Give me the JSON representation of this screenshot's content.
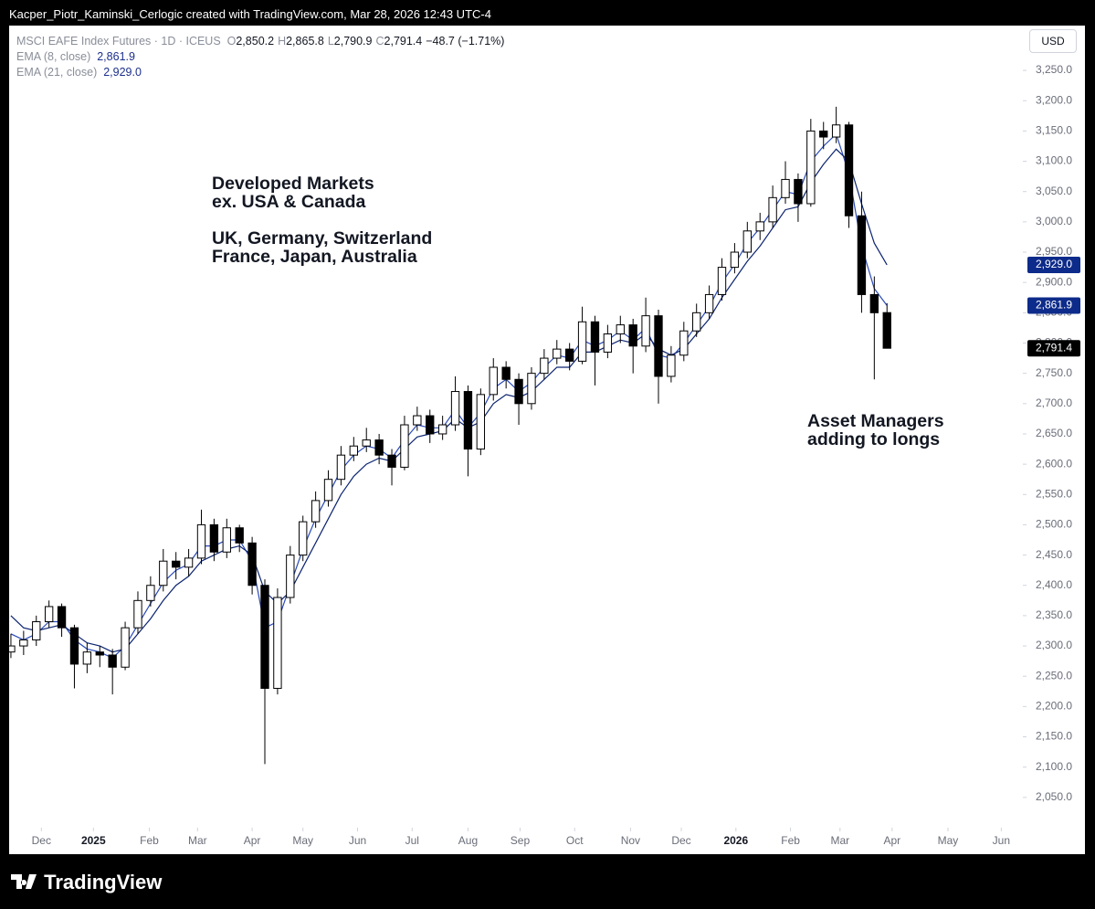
{
  "chart_data": {
    "type": "candlestick",
    "attribution": "Kacper_Piotr_Kaminski_Cerlogic created with TradingView.com, Mar 28, 2026 12:43 UTC-4",
    "symbol": "MSCI EAFE Index Futures · 1D · ICEUS",
    "legend_ohlc": [
      {
        "key": "O",
        "value": "2,850.2"
      },
      {
        "key": "H",
        "value": "2,865.8"
      },
      {
        "key": "L",
        "value": "2,790.9"
      },
      {
        "key": "C",
        "value": "2,791.4"
      }
    ],
    "change": "−48.7 (−1.71%)",
    "currency": "USD",
    "brand": "TradingView",
    "annotations": [
      "Developed Markets",
      "ex. USA & Canada",
      "UK, Germany, Switzerland",
      "France, Japan, Australia",
      "Asset Managers",
      "adding to longs"
    ],
    "up_color": "#ffffff",
    "down_color": "#000000",
    "open": [
      2290,
      2300,
      2310,
      2340,
      2365,
      2330,
      2270,
      2290,
      2285,
      2265,
      2330,
      2375,
      2400,
      2440,
      2430,
      2445,
      2500,
      2455,
      2495,
      2470,
      2400,
      2230,
      2380,
      2450,
      2505,
      2540,
      2575,
      2615,
      2630,
      2640,
      2615,
      2595,
      2665,
      2680,
      2650,
      2665,
      2720,
      2625,
      2715,
      2760,
      2740,
      2700,
      2750,
      2775,
      2790,
      2770,
      2835,
      2785,
      2815,
      2830,
      2795,
      2845,
      2745,
      2780,
      2820,
      2850,
      2880,
      2925,
      2950,
      2985,
      3000,
      3040,
      3070,
      3030,
      3150,
      3140,
      3160,
      3010,
      2880,
      2850.2
    ],
    "high": [
      2320,
      2325,
      2350,
      2375,
      2370,
      2335,
      2305,
      2300,
      2295,
      2340,
      2390,
      2415,
      2460,
      2455,
      2460,
      2525,
      2510,
      2510,
      2500,
      2480,
      2410,
      2395,
      2465,
      2515,
      2555,
      2590,
      2630,
      2645,
      2660,
      2650,
      2625,
      2680,
      2695,
      2690,
      2680,
      2745,
      2730,
      2725,
      2775,
      2770,
      2750,
      2760,
      2790,
      2805,
      2800,
      2860,
      2845,
      2830,
      2845,
      2840,
      2875,
      2855,
      2795,
      2835,
      2865,
      2895,
      2940,
      2965,
      3000,
      3015,
      3060,
      3100,
      3080,
      3170,
      3165,
      3190,
      3165,
      3050,
      2910,
      2865.8
    ],
    "low": [
      2280,
      2285,
      2300,
      2330,
      2315,
      2230,
      2255,
      2265,
      2220,
      2260,
      2320,
      2365,
      2390,
      2410,
      2415,
      2435,
      2440,
      2445,
      2455,
      2385,
      2105,
      2220,
      2370,
      2440,
      2495,
      2530,
      2565,
      2605,
      2620,
      2600,
      2565,
      2590,
      2655,
      2635,
      2640,
      2655,
      2580,
      2615,
      2705,
      2725,
      2665,
      2690,
      2740,
      2765,
      2755,
      2765,
      2730,
      2775,
      2800,
      2750,
      2785,
      2700,
      2735,
      2770,
      2810,
      2840,
      2870,
      2915,
      2940,
      2970,
      2990,
      3030,
      3000,
      3025,
      3120,
      3130,
      2990,
      2850,
      2740,
      2790.9
    ],
    "close": [
      2300,
      2310,
      2340,
      2365,
      2330,
      2270,
      2290,
      2285,
      2265,
      2330,
      2375,
      2400,
      2440,
      2430,
      2445,
      2500,
      2455,
      2495,
      2470,
      2400,
      2230,
      2380,
      2450,
      2505,
      2540,
      2575,
      2615,
      2630,
      2640,
      2615,
      2595,
      2665,
      2680,
      2650,
      2665,
      2720,
      2625,
      2715,
      2760,
      2740,
      2700,
      2750,
      2775,
      2790,
      2770,
      2835,
      2785,
      2815,
      2830,
      2795,
      2845,
      2745,
      2780,
      2820,
      2850,
      2880,
      2925,
      2950,
      2985,
      3000,
      3040,
      3070,
      3030,
      3150,
      3140,
      3160,
      3010,
      2880,
      2850,
      2791.4
    ],
    "series": [
      {
        "name": "EMA (8, close)",
        "color": "#2a4bb8",
        "values": [
          2320,
          2310,
          2320,
          2340,
          2340,
          2310,
          2295,
          2290,
          2280,
          2300,
          2335,
          2370,
          2405,
          2425,
          2435,
          2465,
          2465,
          2475,
          2475,
          2440,
          2330,
          2340,
          2400,
          2460,
          2510,
          2550,
          2590,
          2615,
          2630,
          2625,
          2610,
          2640,
          2665,
          2660,
          2660,
          2690,
          2660,
          2685,
          2725,
          2740,
          2720,
          2735,
          2760,
          2780,
          2775,
          2805,
          2795,
          2805,
          2820,
          2805,
          2825,
          2780,
          2775,
          2800,
          2830,
          2860,
          2900,
          2930,
          2965,
          2990,
          3020,
          3050,
          3045,
          3100,
          3125,
          3145,
          3080,
          2960,
          2890,
          2861.9
        ],
        "value_labels": [
          null,
          null,
          null,
          null,
          null,
          null,
          null,
          null,
          null,
          null,
          null,
          null,
          null,
          null,
          null,
          null,
          null,
          null,
          null,
          null,
          null,
          null,
          null,
          null,
          null,
          null,
          null,
          null,
          null,
          null,
          null,
          null,
          null,
          null,
          null,
          null,
          null,
          null,
          null,
          null,
          null,
          null,
          null,
          null,
          null,
          null,
          null,
          null,
          null,
          null,
          null,
          null,
          null,
          null,
          null,
          null,
          null,
          null,
          null,
          null,
          null,
          null,
          null,
          null,
          null,
          null,
          null,
          null,
          null,
          "2,861.9"
        ]
      },
      {
        "name": "EMA (21, close)",
        "color": "#0c2470",
        "values": [
          2350,
          2330,
          2325,
          2330,
          2335,
          2320,
          2305,
          2300,
          2290,
          2295,
          2320,
          2345,
          2375,
          2400,
          2415,
          2440,
          2450,
          2460,
          2465,
          2450,
          2390,
          2370,
          2390,
          2430,
          2470,
          2510,
          2550,
          2580,
          2600,
          2610,
          2605,
          2625,
          2645,
          2650,
          2655,
          2675,
          2660,
          2670,
          2700,
          2715,
          2710,
          2720,
          2740,
          2760,
          2760,
          2785,
          2785,
          2795,
          2805,
          2800,
          2815,
          2790,
          2780,
          2790,
          2815,
          2840,
          2875,
          2905,
          2935,
          2960,
          2990,
          3020,
          3025,
          3065,
          3095,
          3120,
          3100,
          3030,
          2965,
          2929
        ],
        "value_labels": [
          null,
          null,
          null,
          null,
          null,
          null,
          null,
          null,
          null,
          null,
          null,
          null,
          null,
          null,
          null,
          null,
          null,
          null,
          null,
          null,
          null,
          null,
          null,
          null,
          null,
          null,
          null,
          null,
          null,
          null,
          null,
          null,
          null,
          null,
          null,
          null,
          null,
          null,
          null,
          null,
          null,
          null,
          null,
          null,
          null,
          null,
          null,
          null,
          null,
          null,
          null,
          null,
          null,
          null,
          null,
          null,
          null,
          null,
          null,
          null,
          null,
          null,
          null,
          null,
          null,
          null,
          null,
          null,
          null,
          "2,929.0"
        ]
      }
    ],
    "xlim": [
      -0.14,
      79.7
    ],
    "xticks": [
      {
        "value": 2.4,
        "label": "Dec"
      },
      {
        "value": 6.5,
        "label": "2025"
      },
      {
        "value": 10.9,
        "label": "Feb"
      },
      {
        "value": 14.7,
        "label": "Mar"
      },
      {
        "value": 19.0,
        "label": "Apr"
      },
      {
        "value": 23.0,
        "label": "May"
      },
      {
        "value": 27.3,
        "label": "Jun"
      },
      {
        "value": 31.6,
        "label": "Jul"
      },
      {
        "value": 36.0,
        "label": "Aug"
      },
      {
        "value": 40.1,
        "label": "Sep"
      },
      {
        "value": 44.4,
        "label": "Oct"
      },
      {
        "value": 48.8,
        "label": "Nov"
      },
      {
        "value": 52.8,
        "label": "Dec"
      },
      {
        "value": 57.1,
        "label": "2026"
      },
      {
        "value": 61.4,
        "label": "Feb"
      },
      {
        "value": 65.3,
        "label": "Mar"
      },
      {
        "value": 69.4,
        "label": "Apr"
      },
      {
        "value": 73.8,
        "label": "May"
      },
      {
        "value": 78.0,
        "label": "Jun"
      }
    ],
    "ylim": [
      2000,
      3324
    ],
    "yticks": [
      {
        "value": 2050,
        "label": "2,050.0"
      },
      {
        "value": 2100,
        "label": "2,100.0"
      },
      {
        "value": 2150,
        "label": "2,150.0"
      },
      {
        "value": 2200,
        "label": "2,200.0"
      },
      {
        "value": 2250,
        "label": "2,250.0"
      },
      {
        "value": 2300,
        "label": "2,300.0"
      },
      {
        "value": 2350,
        "label": "2,350.0"
      },
      {
        "value": 2400,
        "label": "2,400.0"
      },
      {
        "value": 2450,
        "label": "2,450.0"
      },
      {
        "value": 2500,
        "label": "2,500.0"
      },
      {
        "value": 2550,
        "label": "2,550.0"
      },
      {
        "value": 2600,
        "label": "2,600.0"
      },
      {
        "value": 2650,
        "label": "2,650.0"
      },
      {
        "value": 2700,
        "label": "2,700.0"
      },
      {
        "value": 2750,
        "label": "2,750.0"
      },
      {
        "value": 2800,
        "label": "2,800.0"
      },
      {
        "value": 2850,
        "label": "2,850.0"
      },
      {
        "value": 2900,
        "label": "2,900.0"
      },
      {
        "value": 2950,
        "label": "2,950.0"
      },
      {
        "value": 3000,
        "label": "3,000.0"
      },
      {
        "value": 3050,
        "label": "3,050.0"
      },
      {
        "value": 3100,
        "label": "3,100.0"
      },
      {
        "value": 3150,
        "label": "3,150.0"
      },
      {
        "value": 3200,
        "label": "3,200.0"
      },
      {
        "value": 3250,
        "label": "3,250.0"
      }
    ],
    "grid": false
  }
}
